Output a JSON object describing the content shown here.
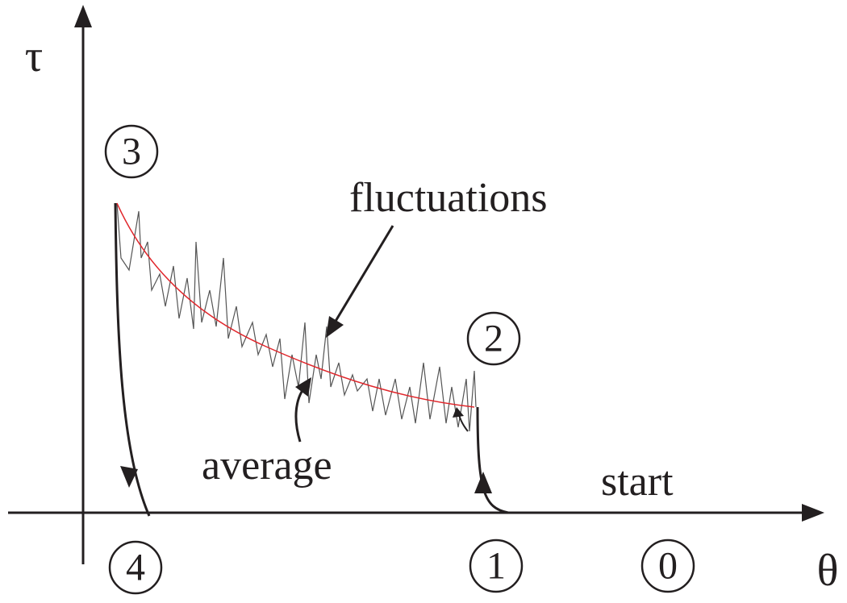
{
  "axes": {
    "y_label": "τ",
    "x_label": "θ"
  },
  "annotations": {
    "fluctuations": "fluctuations",
    "average": "average",
    "start": "start"
  },
  "states": [
    "0",
    "1",
    "2",
    "3",
    "4"
  ]
}
